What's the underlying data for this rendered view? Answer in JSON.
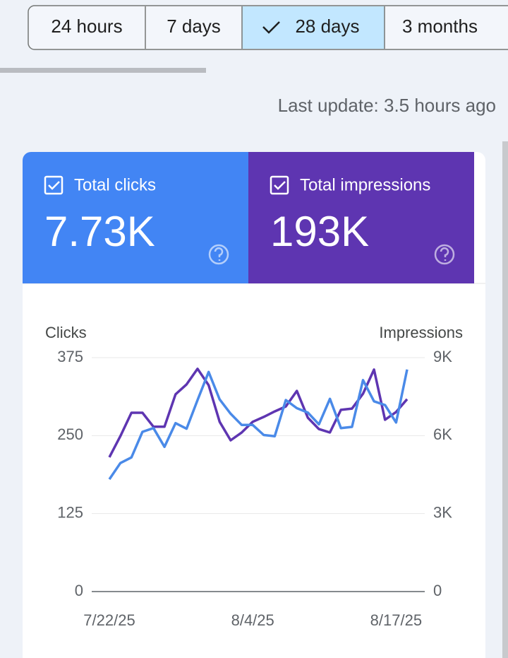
{
  "tabs": [
    "24 hours",
    "7 days",
    "28 days",
    "3 months"
  ],
  "last_update": "Last update: 3.5 hours ago",
  "scorecards": [
    {
      "label": "Total clicks",
      "value": "7.73K",
      "color": "#4285f4"
    },
    {
      "label": "Total impressions",
      "value": "193K",
      "color": "#5e35b1"
    }
  ],
  "chart_data": {
    "type": "line",
    "categories": [
      "7/22/25",
      null,
      null,
      null,
      null,
      null,
      null,
      null,
      null,
      null,
      null,
      null,
      null,
      "8/4/25",
      null,
      null,
      null,
      null,
      null,
      null,
      null,
      null,
      null,
      null,
      null,
      null,
      "8/17/25",
      null
    ],
    "series": [
      {
        "name": "Clicks",
        "color": "#4a8ae8",
        "values": [
          180,
          206,
          215,
          256,
          262,
          232,
          270,
          261,
          307,
          352,
          308,
          285,
          267,
          267,
          251,
          249,
          307,
          294,
          287,
          268,
          309,
          262,
          264,
          339,
          305,
          299,
          271,
          356
        ]
      },
      {
        "name": "Impressions",
        "color": "#5e35b1",
        "axis": "y2",
        "values": [
          5170,
          5980,
          6880,
          6880,
          6340,
          6340,
          7590,
          7970,
          8570,
          7940,
          6530,
          5820,
          6120,
          6530,
          6720,
          6930,
          7120,
          7720,
          6690,
          6250,
          6120,
          6990,
          7040,
          7610,
          8540,
          6610,
          6910,
          7400
        ]
      }
    ],
    "ylim": [
      0,
      375
    ],
    "yticks": [
      0,
      125,
      250,
      375
    ],
    "y2lim": [
      0,
      9000
    ],
    "y2ticks": [
      0,
      {
        "value": 3000,
        "label": "3K"
      },
      {
        "value": 6000,
        "label": "6K"
      },
      {
        "value": 9000,
        "label": "9K"
      }
    ],
    "grid": true
  }
}
